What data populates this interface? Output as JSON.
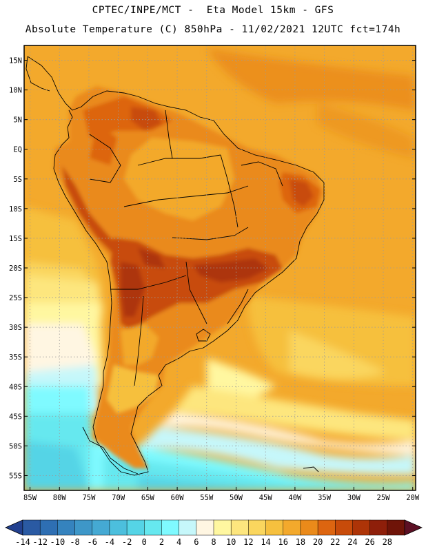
{
  "header": {
    "line1": "CPTEC/INPE/MCT -  Eta Model 15km - GFS",
    "line2": "Absolute Temperature (C) 850hPa - 11/02/2021 12UTC fct=174h"
  },
  "map": {
    "lat_labels": [
      "15N",
      "10N",
      "5N",
      "EQ",
      "5S",
      "10S",
      "15S",
      "20S",
      "25S",
      "30S",
      "35S",
      "40S",
      "45S",
      "50S",
      "55S"
    ],
    "lat_values": [
      15,
      10,
      5,
      0,
      -5,
      -10,
      -15,
      -20,
      -25,
      -30,
      -35,
      -40,
      -45,
      -50,
      -55
    ],
    "lon_labels": [
      "85W",
      "80W",
      "75W",
      "70W",
      "65W",
      "60W",
      "55W",
      "50W",
      "45W",
      "40W",
      "35W",
      "30W",
      "25W",
      "20W"
    ],
    "lon_values": [
      -85,
      -80,
      -75,
      -70,
      -65,
      -60,
      -55,
      -50,
      -45,
      -40,
      -35,
      -30,
      -25,
      -20
    ],
    "extent": {
      "lon_min": -86,
      "lon_max": -19.5,
      "lat_min": -57.5,
      "lat_max": 17.5
    },
    "gridlines": true,
    "grid_style": "dotted"
  },
  "colorbar": {
    "labels": [
      "-14",
      "-12",
      "-10",
      "-8",
      "-6",
      "-4",
      "-2",
      "0",
      "2",
      "4",
      "6",
      "8",
      "10",
      "12",
      "14",
      "16",
      "18",
      "20",
      "22",
      "24",
      "26",
      "28"
    ],
    "colors": [
      "#22408f",
      "#2a5aa3",
      "#2e6fb3",
      "#3583be",
      "#3e97c8",
      "#45a9d3",
      "#4cbfdd",
      "#55d4e6",
      "#66e8ef",
      "#7ffaff",
      "#c6f7fa",
      "#fff6e2",
      "#fff7a0",
      "#fde67e",
      "#fad65e",
      "#f6c03e",
      "#f3a92c",
      "#ea8a1a",
      "#dd6510",
      "#c84b0a",
      "#ad3407",
      "#8e1f0a",
      "#6f1408",
      "#5c1024"
    ],
    "extend_both": true
  }
}
